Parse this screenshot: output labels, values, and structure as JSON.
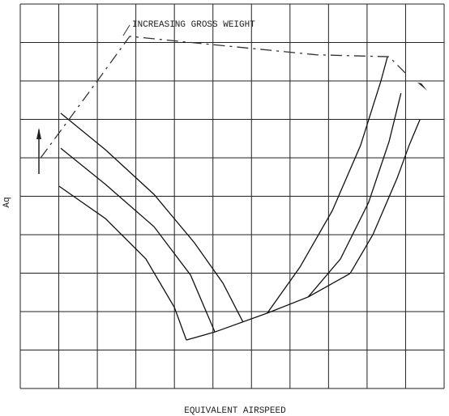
{
  "chart_data": {
    "type": "line",
    "annotation": "INCREASING GROSS WEIGHT",
    "x_label": "EQUIVALENT AIRSPEED",
    "y_label": "Aq",
    "xlim": [
      0,
      11
    ],
    "ylim": [
      0,
      10
    ],
    "xticks": [
      0,
      1,
      2,
      3,
      4,
      5,
      6,
      7,
      8,
      9,
      10,
      11
    ],
    "yticks": [
      0,
      1,
      2,
      3,
      4,
      5,
      6,
      7,
      8,
      9,
      10
    ],
    "grid": true,
    "series": [
      {
        "color": "#111111",
        "x": [
          1.05,
          2.21,
          3.47,
          4.52,
          5.26,
          5.78
        ],
        "values": [
          7.16,
          6.21,
          5.05,
          3.79,
          2.74,
          1.73
        ]
      },
      {
        "color": "#111111",
        "x": [
          1.05,
          2.21,
          3.47,
          4.42,
          5.05
        ],
        "values": [
          6.25,
          5.31,
          4.21,
          2.95,
          1.47
        ]
      },
      {
        "color": "#111111",
        "x": [
          1.01,
          2.21,
          3.26,
          4.0,
          4.31
        ],
        "values": [
          5.26,
          4.42,
          3.37,
          2.11,
          1.26
        ]
      },
      {
        "color": "#111111",
        "x": [
          4.31,
          5.05,
          6.41,
          7.47,
          8.56
        ],
        "values": [
          1.26,
          1.47,
          1.96,
          2.38,
          2.99
        ]
      },
      {
        "color": "#111111",
        "x": [
          6.41,
          7.26,
          8.1,
          8.83,
          9.36,
          9.53
        ],
        "values": [
          1.96,
          3.16,
          4.63,
          6.32,
          8.0,
          8.63
        ]
      },
      {
        "color": "#111111",
        "x": [
          7.47,
          8.31,
          9.04,
          9.57,
          9.88
        ],
        "values": [
          2.38,
          3.37,
          4.84,
          6.42,
          7.68
        ]
      },
      {
        "color": "#111111",
        "x": [
          8.56,
          9.15,
          9.78,
          10.09,
          10.37
        ],
        "values": [
          2.99,
          4.0,
          5.47,
          6.32,
          6.99
        ]
      },
      {
        "color": "#333333",
        "dashed": true,
        "x": [
          0.53,
          2.0,
          2.84,
          4.94,
          7.68,
          9.57,
          9.99
        ],
        "values": [
          6.0,
          8.0,
          9.16,
          8.95,
          8.68,
          8.63,
          8.21
        ]
      }
    ]
  }
}
